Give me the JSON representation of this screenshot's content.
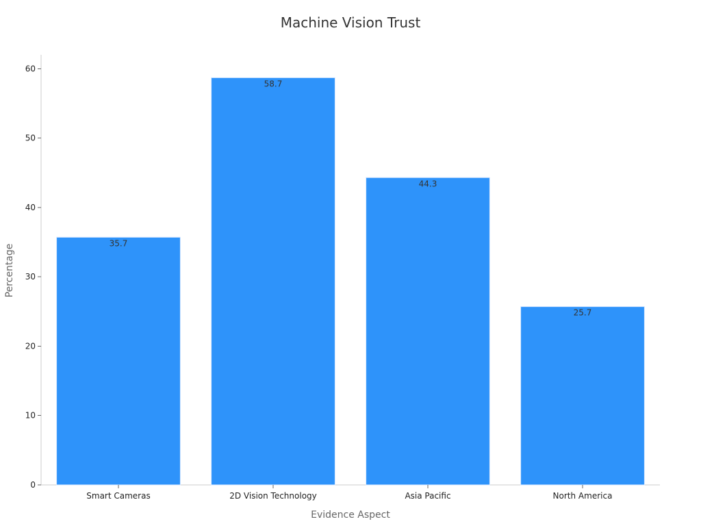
{
  "chart_data": {
    "type": "bar",
    "title": "Machine Vision Trust",
    "xlabel": "Evidence Aspect",
    "ylabel": "Percentage",
    "categories": [
      "Smart Cameras",
      "2D Vision Technology",
      "Asia Pacific",
      "North America"
    ],
    "values": [
      35.7,
      58.7,
      44.3,
      25.7
    ],
    "value_labels": [
      "35.7",
      "58.7",
      "44.3",
      "25.7"
    ],
    "ylim": [
      0,
      62
    ],
    "yticks": [
      0,
      10,
      20,
      30,
      40,
      50,
      60
    ],
    "grid": false,
    "legend": "none",
    "bar_color": "#2e93fa",
    "bar_edge_color": "#d9e8ff"
  }
}
